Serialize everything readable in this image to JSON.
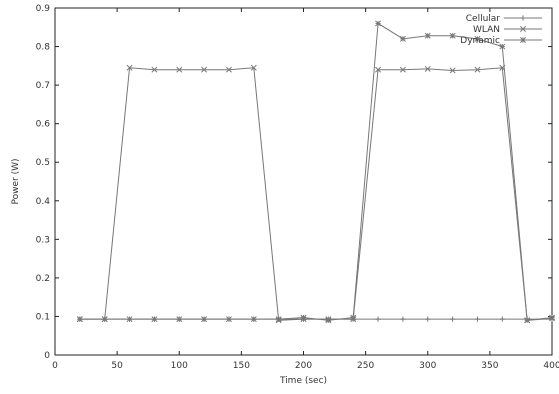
{
  "chart_data": {
    "type": "line",
    "title": "",
    "xlabel": "Time (sec)",
    "ylabel": "Power (W)",
    "xlim": [
      0,
      400
    ],
    "ylim": [
      0,
      0.9
    ],
    "xticks": [
      0,
      50,
      100,
      150,
      200,
      250,
      300,
      350,
      400
    ],
    "yticks": [
      0,
      0.1,
      0.2,
      0.3,
      0.4,
      0.5,
      0.6,
      0.7,
      0.8,
      0.9
    ],
    "xtick_labels": [
      "0",
      "50",
      "100",
      "150",
      "200",
      "250",
      "300",
      "350",
      "400"
    ],
    "ytick_labels": [
      "0",
      "0.1",
      "0.2",
      "0.3",
      "0.4",
      "0.5",
      "0.6",
      "0.7",
      "0.8",
      "0.9"
    ],
    "grid": false,
    "legend_position": "top-right",
    "series": [
      {
        "name": "Cellular",
        "marker": "plus",
        "x": [
          20,
          40,
          60,
          80,
          100,
          120,
          140,
          160,
          180,
          200,
          220,
          240,
          260,
          280,
          300,
          320,
          340,
          360,
          380,
          400
        ],
        "y": [
          0.093,
          0.093,
          0.093,
          0.093,
          0.093,
          0.093,
          0.093,
          0.093,
          0.093,
          0.093,
          0.093,
          0.093,
          0.093,
          0.093,
          0.093,
          0.093,
          0.093,
          0.093,
          0.093,
          0.093
        ]
      },
      {
        "name": "WLAN",
        "marker": "cross",
        "x": [
          20,
          40,
          60,
          80,
          100,
          120,
          140,
          160,
          180,
          200,
          220,
          240,
          260,
          280,
          300,
          320,
          340,
          360,
          380,
          400
        ],
        "y": [
          0.093,
          0.093,
          0.745,
          0.74,
          0.74,
          0.74,
          0.74,
          0.745,
          0.09,
          0.093,
          0.093,
          0.093,
          0.74,
          0.74,
          0.742,
          0.738,
          0.74,
          0.745,
          0.09,
          0.095
        ]
      },
      {
        "name": "Dynamic",
        "marker": "star",
        "x": [
          20,
          40,
          60,
          80,
          100,
          120,
          140,
          160,
          180,
          200,
          220,
          240,
          260,
          280,
          300,
          320,
          340,
          360,
          380,
          400
        ],
        "y": [
          0.093,
          0.093,
          0.093,
          0.093,
          0.093,
          0.093,
          0.093,
          0.093,
          0.093,
          0.097,
          0.09,
          0.097,
          0.86,
          0.82,
          0.828,
          0.828,
          0.82,
          0.8,
          0.09,
          0.097
        ]
      }
    ],
    "colors": {
      "axis": "#222222",
      "series": "#777777"
    }
  }
}
